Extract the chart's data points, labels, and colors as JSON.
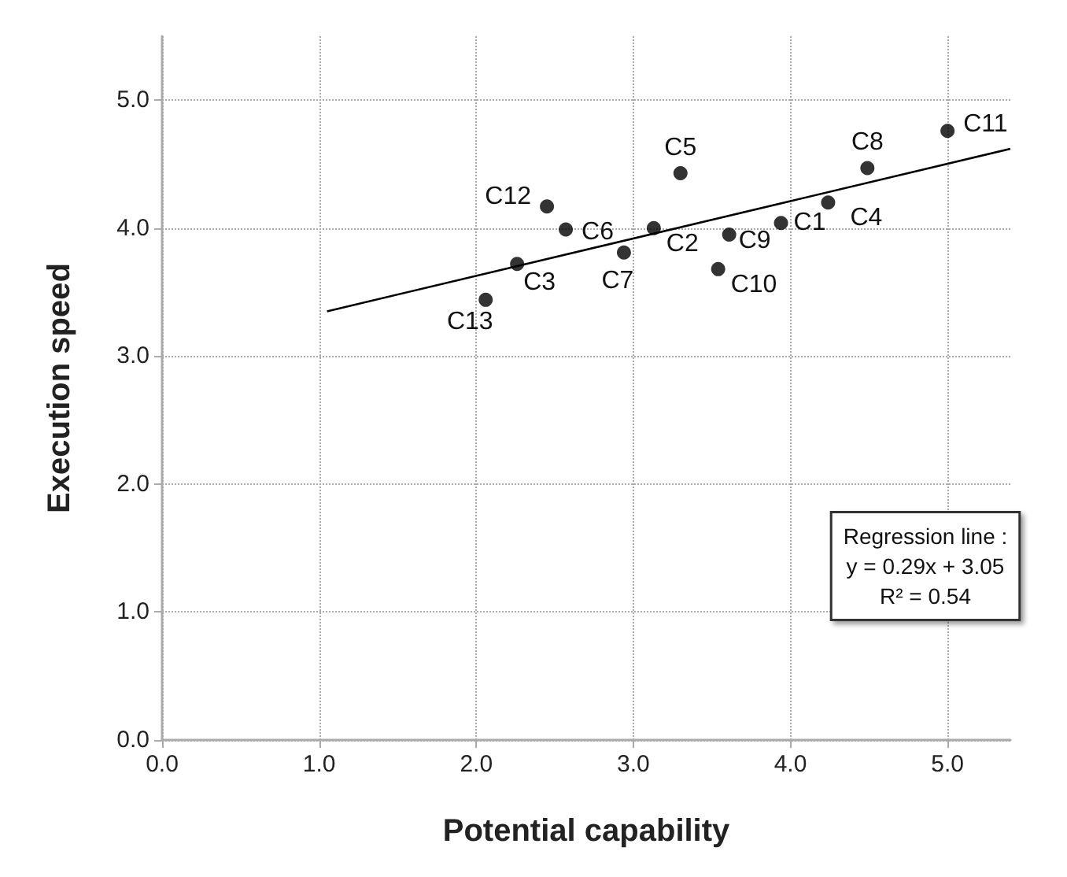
{
  "chart_data": {
    "type": "scatter",
    "xlabel": "Potential capability",
    "ylabel": "Execution speed",
    "xlim": [
      0,
      5.4
    ],
    "ylim": [
      0,
      5.5
    ],
    "xticks": [
      {
        "value": 0,
        "label": "0.0"
      },
      {
        "value": 1,
        "label": "1.0"
      },
      {
        "value": 2,
        "label": "2.0"
      },
      {
        "value": 3,
        "label": "3.0"
      },
      {
        "value": 4,
        "label": "4.0"
      },
      {
        "value": 5,
        "label": "5.0"
      }
    ],
    "yticks": [
      {
        "value": 0,
        "label": "0.0"
      },
      {
        "value": 1,
        "label": "1.0"
      },
      {
        "value": 2,
        "label": "2.0"
      },
      {
        "value": 3,
        "label": "3.0"
      },
      {
        "value": 4,
        "label": "4.0"
      },
      {
        "value": 5,
        "label": "5.0"
      }
    ],
    "grid": true,
    "series": [
      {
        "color": "#000000",
        "marker": "circle",
        "x": [
          3.94,
          3.13,
          2.26,
          4.24,
          3.3,
          2.57,
          2.94,
          4.49,
          3.61,
          3.54,
          5.0,
          2.45,
          2.06
        ],
        "values": [
          4.04,
          4.0,
          3.72,
          4.2,
          4.43,
          3.99,
          3.81,
          4.47,
          3.95,
          3.68,
          4.76,
          4.17,
          3.44
        ]
      },
      {
        "type": "line",
        "color": "#000000",
        "marker": "none",
        "x": [
          1.05,
          5.4
        ],
        "values": [
          3.35,
          4.62
        ]
      }
    ],
    "annotations": [
      {
        "text": "C1",
        "x": 3.94,
        "y": 4.04
      },
      {
        "text": "C2",
        "x": 3.13,
        "y": 4.0
      },
      {
        "text": "C3",
        "x": 2.26,
        "y": 3.72
      },
      {
        "text": "C4",
        "x": 4.24,
        "y": 4.2
      },
      {
        "text": "C5",
        "x": 3.3,
        "y": 4.43
      },
      {
        "text": "C6",
        "x": 2.57,
        "y": 3.99
      },
      {
        "text": "C7",
        "x": 2.94,
        "y": 3.81
      },
      {
        "text": "C8",
        "x": 4.49,
        "y": 4.47
      },
      {
        "text": "C9",
        "x": 3.61,
        "y": 3.95
      },
      {
        "text": "C10",
        "x": 3.54,
        "y": 3.68
      },
      {
        "text": "C11",
        "x": 5.0,
        "y": 4.76
      },
      {
        "text": "C12",
        "x": 2.45,
        "y": 4.17
      },
      {
        "text": "C13",
        "x": 2.06,
        "y": 3.44
      },
      "Regression line :\ny = 0.29x + 3.05\nR² = 0.54"
    ]
  }
}
